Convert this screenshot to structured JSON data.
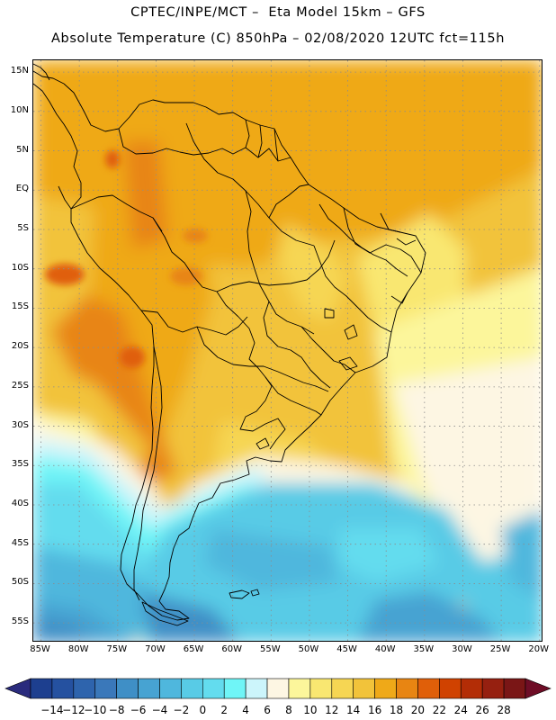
{
  "header": {
    "title_line1": "CPTEC/INPE/MCT –  Eta Model 15km – GFS",
    "title_line2": "Absolute Temperature (C) 850hPa – 02/08/2020 12UTC fct=115h"
  },
  "map": {
    "lat_labels": [
      "15N",
      "10N",
      "5N",
      "EQ",
      "5S",
      "10S",
      "15S",
      "20S",
      "25S",
      "30S",
      "35S",
      "40S",
      "45S",
      "50S",
      "55S"
    ],
    "lon_labels": [
      "85W",
      "80W",
      "75W",
      "70W",
      "65W",
      "60W",
      "55W",
      "50W",
      "45W",
      "40W",
      "35W",
      "30W",
      "25W",
      "20W"
    ],
    "lat_values": [
      15,
      10,
      5,
      0,
      -5,
      -10,
      -15,
      -20,
      -25,
      -30,
      -35,
      -40,
      -45,
      -50,
      -55
    ],
    "lon_values": [
      -85,
      -80,
      -75,
      -70,
      -65,
      -60,
      -55,
      -50,
      -45,
      -40,
      -35,
      -30,
      -25,
      -20
    ],
    "extent": {
      "lon_min": -86,
      "lon_max": -19.5,
      "lat_min": -57.5,
      "lat_max": 16.5
    }
  },
  "colorbar": {
    "labels": [
      "-14",
      "-12",
      "-10",
      "-8",
      "-6",
      "-4",
      "-2",
      "0",
      "2",
      "4",
      "6",
      "8",
      "10",
      "12",
      "14",
      "16",
      "18",
      "20",
      "22",
      "24",
      "26",
      "28"
    ],
    "colors": [
      "#1d3f8f",
      "#2551a0",
      "#2e64ad",
      "#3a78ba",
      "#3f8fc6",
      "#47a3d2",
      "#4fb7dd",
      "#58cbe6",
      "#63dcee",
      "#6ff5f7",
      "#ccf5fb",
      "#fdf6e3",
      "#fcf69b",
      "#f9e771",
      "#f6d653",
      "#f2c33a",
      "#efa918",
      "#e88512",
      "#e05f09",
      "#d04200",
      "#b32d06",
      "#962010",
      "#7a1616"
    ],
    "under_color": "#2a2b7d",
    "over_color": "#6e0d26"
  }
}
